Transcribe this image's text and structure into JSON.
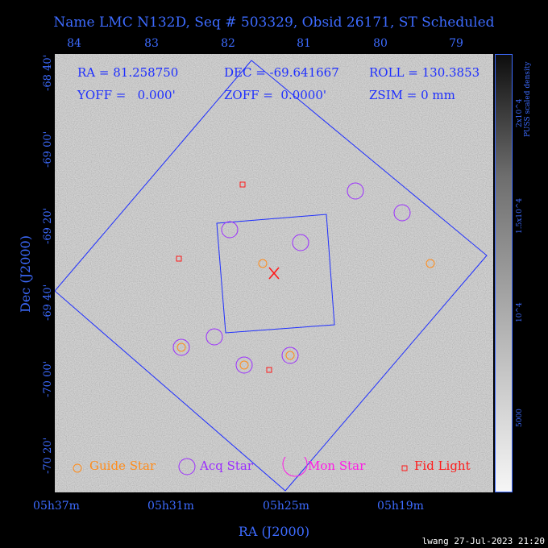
{
  "title": "Name LMC N132D, Seq # 503329, Obsid 26171, ST Scheduled",
  "info": {
    "ra": "RA = 81.258750",
    "dec": "DEC = -69.641667",
    "roll": "ROLL = 130.3853",
    "yoff": "YOFF =   0.000'",
    "zoff": "ZOFF =  0.0000'",
    "zsim": "ZSIM = 0 mm"
  },
  "top_axis_ticks": [
    "84",
    "83",
    "82",
    "81",
    "80",
    "79"
  ],
  "bottom_axis_ticks": [
    "05h37m",
    "05h31m",
    "05h25m",
    "05h19m"
  ],
  "dec_axis_ticks": [
    "-68 40'",
    "-69 00'",
    "-69 20'",
    "-69 40'",
    "-70 00'",
    "-70 20'"
  ],
  "xlabel": "RA (J2000)",
  "ylabel": "Dec (J2000)",
  "colorbar": {
    "label": "PUSS scaled density",
    "ticks": [
      "2x10^4",
      "1.5x10^4",
      "10^4",
      "5000"
    ]
  },
  "legend": {
    "guide": "Guide Star",
    "acq": "Acq Star",
    "mon": "Mon Star",
    "fid": "Fid Light"
  },
  "colors": {
    "guide": "#ff8c1a",
    "acq": "#9b2cff",
    "mon": "#ff1ae6",
    "fid": "#ff1a1a",
    "outline": "#1e2eff",
    "axis": "#3d6bff"
  },
  "stamp": "lwang 27-Jul-2023 21:20"
}
